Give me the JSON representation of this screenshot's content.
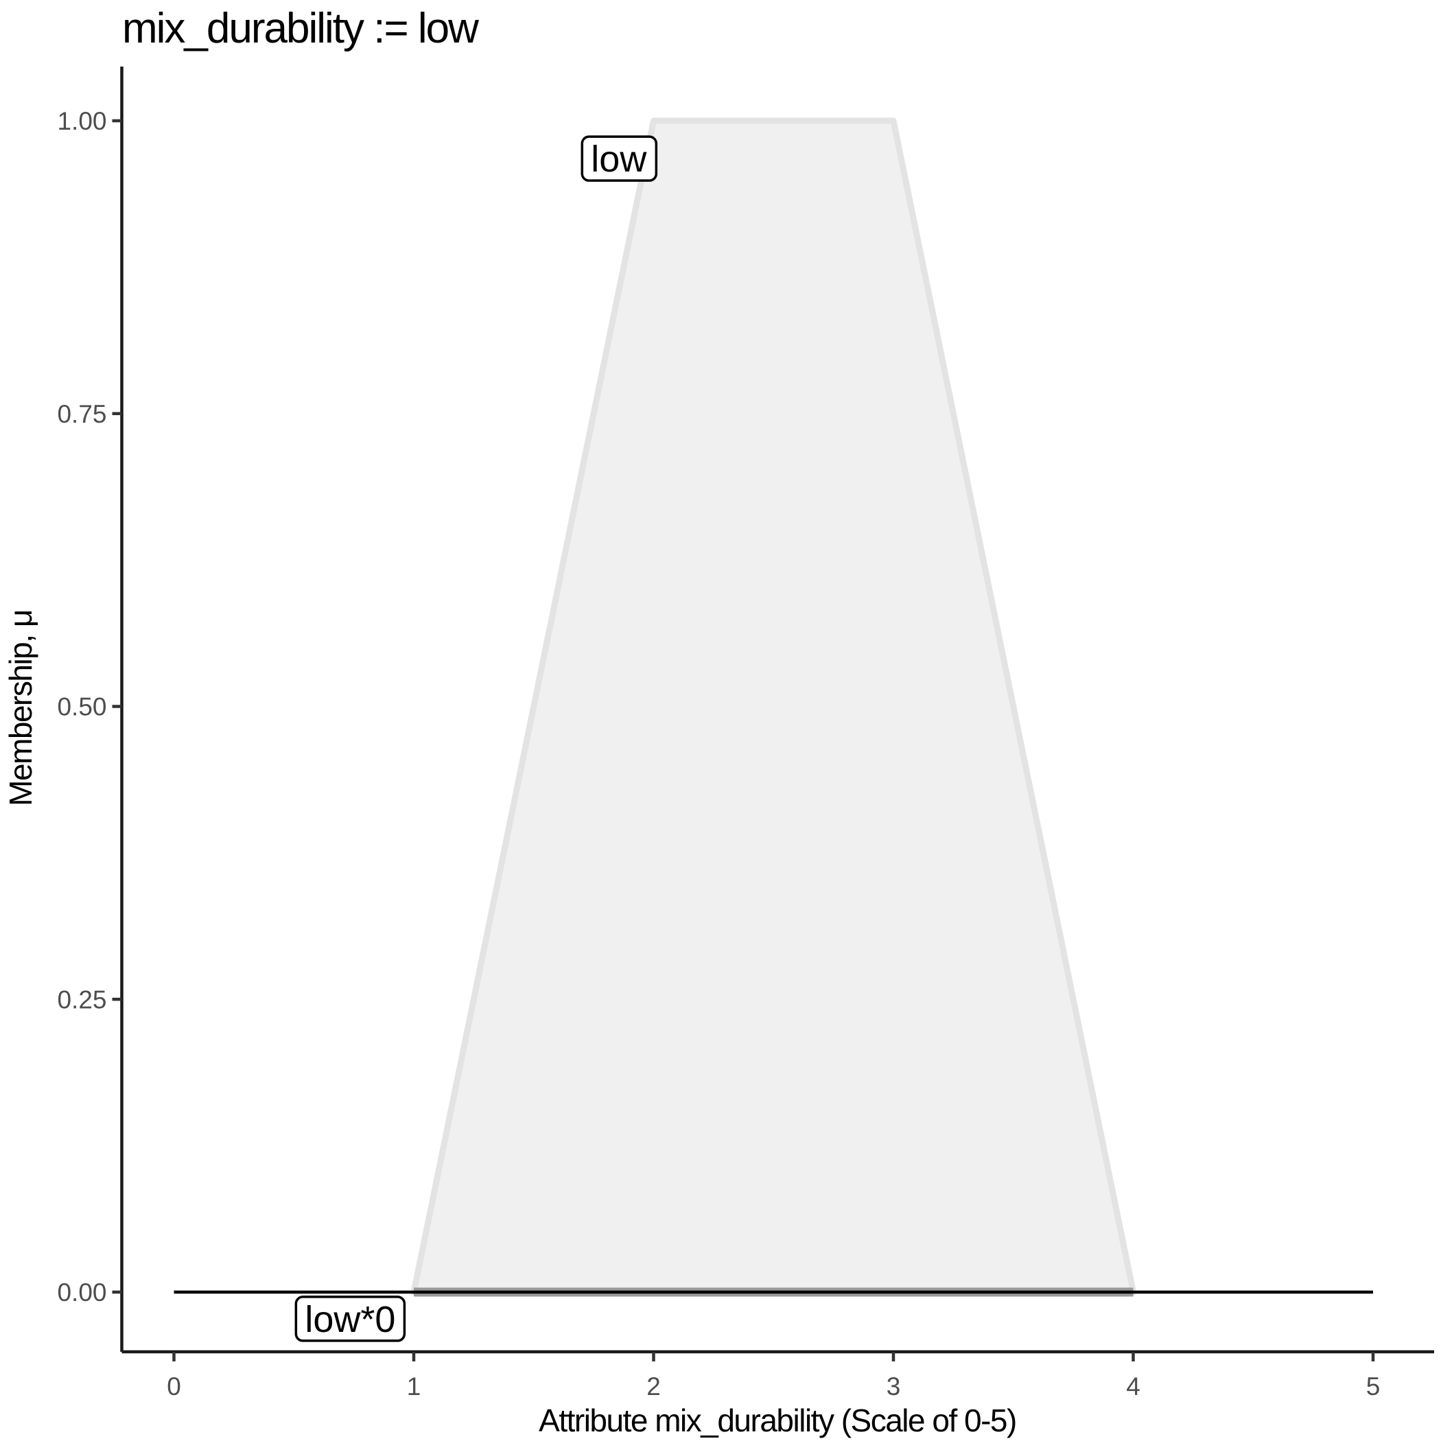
{
  "chart_data": {
    "type": "area",
    "title": "mix_durability := low",
    "xlabel": "Attribute mix_durability (Scale of 0-5)",
    "ylabel": "Membership, μ",
    "xlim": [
      0,
      5
    ],
    "ylim": [
      0,
      1
    ],
    "grid": false,
    "legend_position": "none (direct boxed labels on plot)",
    "x_ticks": {
      "values": [
        0,
        1,
        2,
        3,
        4,
        5
      ],
      "labels": [
        "0",
        "1",
        "2",
        "3",
        "4",
        "5"
      ]
    },
    "y_ticks": {
      "values": [
        0,
        0.25,
        0.5,
        0.75,
        1
      ],
      "labels": [
        "0.00",
        "0.25",
        "0.50",
        "0.75",
        "1.00"
      ]
    },
    "series": [
      {
        "name": "low",
        "kind": "trapezoid-membership-function",
        "x": [
          1,
          2,
          3,
          4
        ],
        "y": [
          0,
          1,
          1,
          0
        ],
        "fill": "#f0f0f0",
        "stroke": "#e3e3e3",
        "stroke_width": 9
      },
      {
        "name": "low-support-baseline",
        "kind": "line",
        "x": [
          1,
          4
        ],
        "y": [
          0,
          0
        ],
        "stroke": "#999999",
        "stroke_width": 13
      },
      {
        "name": "low*0",
        "kind": "line (membership function low scaled by 0 = flat zero)",
        "x": [
          0,
          5
        ],
        "y": [
          0,
          0
        ],
        "stroke": "#000000",
        "stroke_width": 4.5
      }
    ],
    "annotations": [
      {
        "text": "low",
        "x": 1.855,
        "y": 0.9677
      },
      {
        "text": "low*0",
        "x": 0.735,
        "y": -0.0228
      }
    ]
  },
  "style": {
    "axis_line_color": "#1a1a1a",
    "axis_line_width": 4.5,
    "tick_color": "#333333",
    "tick_length": 14,
    "tick_label_color": "#4d4d4d",
    "annotation_box_fill": "#ffffff",
    "annotation_box_stroke": "#000000",
    "background": "#ffffff"
  }
}
